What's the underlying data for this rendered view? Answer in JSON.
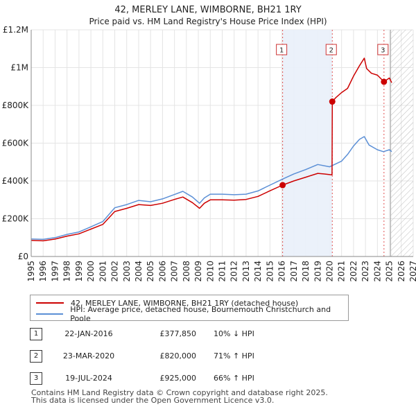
{
  "chart_data": {
    "type": "line",
    "title": "42, MERLEY LANE, WIMBORNE, BH21 1RY",
    "subtitle": "Price paid vs. HM Land Registry's House Price Index (HPI)",
    "xlim": [
      1995,
      2027
    ],
    "ylim": [
      0,
      1200000
    ],
    "x_ticks": [
      "1995",
      "1996",
      "1997",
      "1998",
      "1999",
      "2000",
      "2001",
      "2002",
      "2003",
      "2004",
      "2005",
      "2006",
      "2007",
      "2008",
      "2009",
      "2010",
      "2011",
      "2012",
      "2013",
      "2014",
      "2015",
      "2016",
      "2017",
      "2018",
      "2019",
      "2020",
      "2021",
      "2022",
      "2023",
      "2024",
      "2025",
      "2026",
      "2027"
    ],
    "y_ticks": [
      {
        "value": 0,
        "label": "£0"
      },
      {
        "value": 200000,
        "label": "£200K"
      },
      {
        "value": 400000,
        "label": "£400K"
      },
      {
        "value": 600000,
        "label": "£600K"
      },
      {
        "value": 800000,
        "label": "£800K"
      },
      {
        "value": 1000000,
        "label": "£1M"
      },
      {
        "value": 1200000,
        "label": "£1.2M"
      }
    ],
    "future_start": 2025.1,
    "grid": true,
    "series": [
      {
        "name": "42, MERLEY LANE, WIMBORNE, BH21 1RY (detached house)",
        "color": "#cc0000",
        "x": [
          1995.0,
          1996.0,
          1997.0,
          1998.0,
          1999.0,
          2000.0,
          2001.0,
          2002.0,
          2003.0,
          2004.0,
          2005.0,
          2006.0,
          2007.0,
          2007.7,
          2008.5,
          2009.1,
          2009.5,
          2010.0,
          2011.0,
          2012.0,
          2013.0,
          2014.0,
          2015.0,
          2016.06,
          2017.0,
          2018.0,
          2019.0,
          2019.5,
          2020.2,
          2020.22,
          2020.5,
          2021.0,
          2021.5,
          2022.0,
          2022.5,
          2022.9,
          2023.1,
          2023.5,
          2024.0,
          2024.55,
          2025.0,
          2025.2
        ],
        "y": [
          85000,
          83000,
          92000,
          108000,
          120000,
          145000,
          170000,
          238000,
          255000,
          275000,
          270000,
          282000,
          302000,
          315000,
          285000,
          255000,
          282000,
          300000,
          300000,
          298000,
          302000,
          318000,
          348000,
          377850,
          400000,
          420000,
          440000,
          437000,
          432000,
          820000,
          840000,
          868000,
          890000,
          955000,
          1010000,
          1050000,
          995000,
          970000,
          960000,
          925000,
          945000,
          920000
        ]
      },
      {
        "name": "HPI: Average price, detached house, Bournemouth Christchurch and Poole",
        "color": "#5b8fd6",
        "x": [
          1995.0,
          1996.0,
          1997.0,
          1998.0,
          1999.0,
          2000.0,
          2001.0,
          2002.0,
          2003.0,
          2004.0,
          2005.0,
          2006.0,
          2007.0,
          2007.7,
          2008.5,
          2009.1,
          2009.5,
          2010.0,
          2011.0,
          2012.0,
          2013.0,
          2014.0,
          2015.0,
          2016.0,
          2017.0,
          2018.0,
          2019.0,
          2020.0,
          2021.0,
          2021.5,
          2022.0,
          2022.5,
          2022.9,
          2023.3,
          2024.0,
          2024.5,
          2025.0,
          2025.2
        ],
        "y": [
          93000,
          91000,
          100000,
          117000,
          130000,
          157000,
          185000,
          258000,
          275000,
          297000,
          290000,
          305000,
          328000,
          345000,
          315000,
          282000,
          310000,
          330000,
          330000,
          327000,
          330000,
          347000,
          378000,
          408000,
          437000,
          460000,
          487000,
          475000,
          505000,
          540000,
          585000,
          620000,
          635000,
          590000,
          565000,
          555000,
          565000,
          555000
        ]
      }
    ],
    "events": [
      {
        "id": "1",
        "x": 2016.06,
        "y": 377850,
        "date": "22-JAN-2016",
        "price": "£377,850",
        "hpi": "10% ↓ HPI"
      },
      {
        "id": "2",
        "x": 2020.22,
        "y": 820000,
        "date": "23-MAR-2020",
        "price": "£820,000",
        "hpi": "71% ↑ HPI"
      },
      {
        "id": "3",
        "x": 2024.55,
        "y": 925000,
        "date": "19-JUL-2024",
        "price": "£925,000",
        "hpi": "66% ↑ HPI"
      }
    ]
  },
  "legend": {
    "price_label": "42, MERLEY LANE, WIMBORNE, BH21 1RY (detached house)",
    "hpi_label": "HPI: Average price, detached house, Bournemouth Christchurch and Poole",
    "price_color": "#cc0000",
    "hpi_color": "#5b8fd6"
  },
  "footer": {
    "line1": "Contains HM Land Registry data © Crown copyright and database right 2025.",
    "line2": "This data is licensed under the Open Government Licence v3.0."
  }
}
